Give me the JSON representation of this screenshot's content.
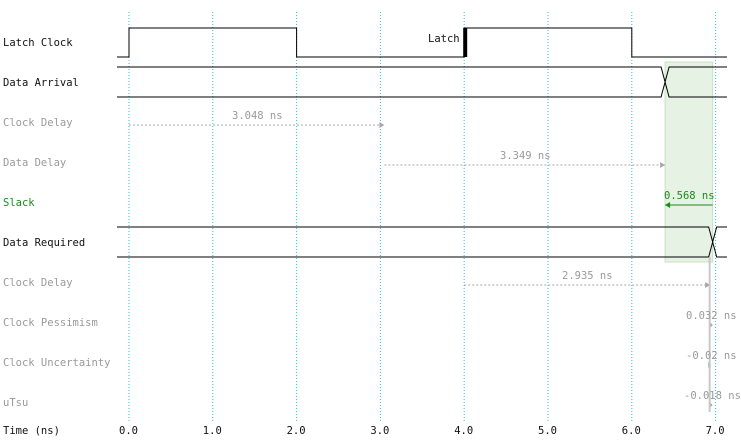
{
  "rows": [
    {
      "label": "Latch Clock",
      "style": "dark"
    },
    {
      "label": "Data Arrival",
      "style": "dark"
    },
    {
      "label": "Clock Delay",
      "style": "grey"
    },
    {
      "label": "Data Delay",
      "style": "grey"
    },
    {
      "label": "Slack",
      "style": "green"
    },
    {
      "label": "Data Required",
      "style": "dark"
    },
    {
      "label": "Clock Delay",
      "style": "grey"
    },
    {
      "label": "Clock Pessimism",
      "style": "grey"
    },
    {
      "label": "Clock Uncertainty",
      "style": "grey"
    },
    {
      "label": "uTsu",
      "style": "grey"
    }
  ],
  "latch_marker": {
    "label": "Latch",
    "time": 4.0
  },
  "axis": {
    "title": "Time (ns)",
    "ticks": [
      "0.0",
      "1.0",
      "2.0",
      "3.0",
      "4.0",
      "5.0",
      "6.0",
      "7.0"
    ],
    "tick_values": [
      0,
      1,
      2,
      3,
      4,
      5,
      6,
      7
    ],
    "range": [
      0,
      7
    ]
  },
  "clock": {
    "high_intervals": [
      [
        0,
        2
      ],
      [
        4,
        6
      ]
    ]
  },
  "data_arrival_time": 6.397,
  "data_required_time": 6.965,
  "arrows": {
    "clock_delay": {
      "label": "3.048 ns",
      "from": 0.0,
      "to": 3.048
    },
    "data_delay": {
      "label": "3.349 ns",
      "from": 3.048,
      "to": 6.397
    },
    "slack": {
      "label": "0.568 ns",
      "from": 6.965,
      "to": 6.397
    },
    "req_clock_delay": {
      "label": "2.935 ns",
      "from": 4.0,
      "to": 6.935
    },
    "clock_pessimism": {
      "label": "0.032 ns",
      "at": 6.967
    },
    "clock_uncertainty": {
      "label": "-0.02 ns",
      "at": 6.947
    },
    "utsu": {
      "label": "-0.018 ns",
      "at": 6.965
    }
  },
  "colors": {
    "grid": "#33bbdd",
    "wave": "#000000",
    "arrow_grey": "#a8a8a8",
    "slack_green": "#1a8a1a",
    "slack_fill": "#e6f2e4"
  }
}
